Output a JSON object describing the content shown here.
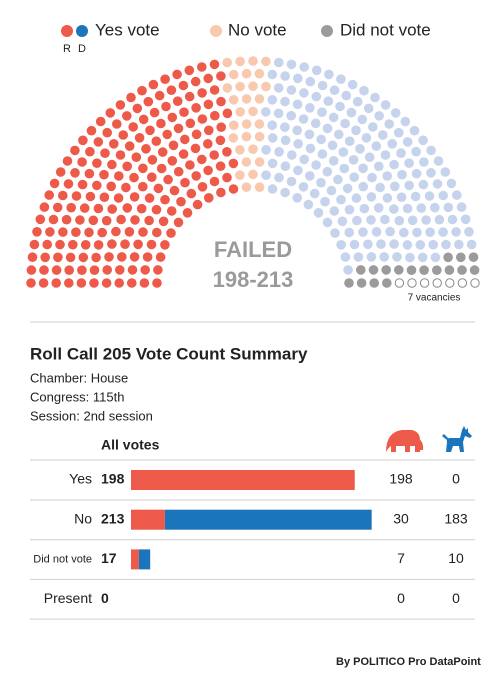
{
  "legend": {
    "yes": "Yes vote",
    "no": "No vote",
    "not_voting": "Did not vote",
    "r": "R",
    "d": "D"
  },
  "colors": {
    "r_yes": "#ee5a4a",
    "d_yes": "#1b75bc",
    "r_no": "#f8c9ae",
    "d_no": "#c5d3ec",
    "not_voting": "#9b9b9b",
    "vacant": "#ffffff"
  },
  "result": {
    "status": "FAILED",
    "score": "198-213"
  },
  "vacancies": {
    "value": 7,
    "label": "7 vacancies"
  },
  "summary": {
    "title": "Roll Call 205 Vote Count Summary",
    "details": [
      "Chamber: House",
      "Congress: 115th",
      "Session: 2nd session"
    ],
    "column_header": "All votes",
    "rows": [
      {
        "label": "Yes",
        "total": 198,
        "r": 198,
        "d": 0
      },
      {
        "label": "No",
        "total": 213,
        "r": 30,
        "d": 183
      },
      {
        "label": "Did not vote",
        "total": 17,
        "r": 7,
        "d": 10
      },
      {
        "label": "Present",
        "total": 0,
        "r": 0,
        "d": 0
      }
    ]
  },
  "footer": "By POLITICO Pro DataPoint"
}
